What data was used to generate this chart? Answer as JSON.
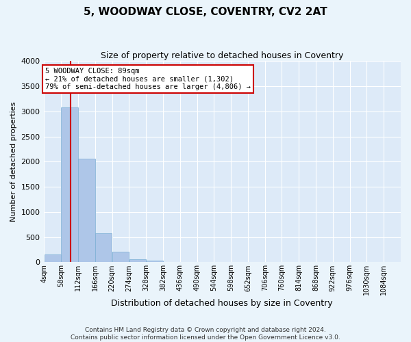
{
  "title": "5, WOODWAY CLOSE, COVENTRY, CV2 2AT",
  "subtitle": "Size of property relative to detached houses in Coventry",
  "xlabel": "Distribution of detached houses by size in Coventry",
  "ylabel": "Number of detached properties",
  "annotation_line1": "5 WOODWAY CLOSE: 89sqm",
  "annotation_line2": "← 21% of detached houses are smaller (1,302)",
  "annotation_line3": "79% of semi-detached houses are larger (4,806) →",
  "bin_edges": [
    4,
    58,
    112,
    166,
    220,
    274,
    328,
    382,
    436,
    490,
    544,
    598,
    652,
    706,
    760,
    814,
    868,
    922,
    976,
    1030,
    1084
  ],
  "bin_labels": [
    "4sqm",
    "58sqm",
    "112sqm",
    "166sqm",
    "220sqm",
    "274sqm",
    "328sqm",
    "382sqm",
    "436sqm",
    "490sqm",
    "544sqm",
    "598sqm",
    "652sqm",
    "706sqm",
    "760sqm",
    "814sqm",
    "868sqm",
    "922sqm",
    "976sqm",
    "1030sqm",
    "1084sqm"
  ],
  "bar_heights": [
    150,
    3080,
    2060,
    570,
    210,
    60,
    30,
    0,
    0,
    0,
    0,
    0,
    0,
    0,
    0,
    0,
    0,
    0,
    0,
    0
  ],
  "bar_color": "#aec6e8",
  "bar_edge_color": "#7bafd4",
  "vline_x": 89,
  "vline_color": "#cc0000",
  "fig_background_color": "#eaf4fb",
  "axes_background_color": "#ddeaf8",
  "grid_color": "#ffffff",
  "ylim": [
    0,
    4000
  ],
  "yticks": [
    0,
    500,
    1000,
    1500,
    2000,
    2500,
    3000,
    3500,
    4000
  ],
  "footer_line1": "Contains HM Land Registry data © Crown copyright and database right 2024.",
  "footer_line2": "Contains public sector information licensed under the Open Government Licence v3.0.",
  "title_fontsize": 11,
  "subtitle_fontsize": 9,
  "ylabel_fontsize": 8,
  "xlabel_fontsize": 9,
  "tick_fontsize": 7,
  "footer_fontsize": 6.5,
  "annotation_fontsize": 7.5
}
